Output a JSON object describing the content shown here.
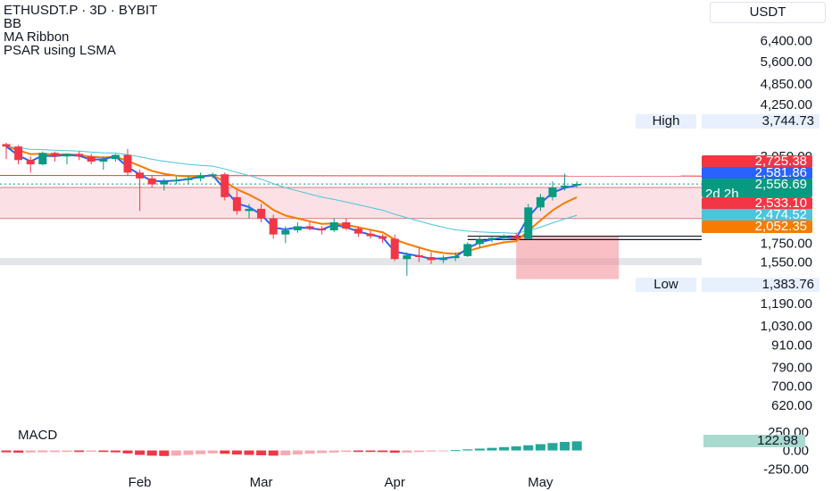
{
  "legend": {
    "title": "ETHUSDT.P · 3D · BYBIT",
    "indicators": [
      "BB",
      "MA Ribbon",
      "PSAR using LSMA"
    ]
  },
  "macd_label": "MACD",
  "price_axis": {
    "unit": "USDT",
    "ticks": [
      "6,400.00",
      "5,600.00",
      "4,850.00",
      "4,250.00",
      "3,050.00",
      "1,750.00",
      "1,550.00",
      "1,190.00",
      "1,030.00",
      "910.00",
      "790.00",
      "700.00",
      "620.00"
    ]
  },
  "macd_axis": {
    "ticks": [
      "250.00",
      "0.00",
      "-250.00"
    ]
  },
  "time_axis": {
    "labels": [
      "Feb",
      "Mar",
      "Apr",
      "May"
    ]
  },
  "high": {
    "label": "High",
    "value": "3,744.73"
  },
  "low": {
    "label": "Low",
    "value": "1,383.76"
  },
  "price_tags": [
    {
      "value": "2,725.38",
      "color": "#f23645"
    },
    {
      "value": "2,581.86",
      "color": "#2962ff"
    },
    {
      "value": "2,556.69",
      "color": "#089981",
      "extra": "2d 2h"
    },
    {
      "value": "2,533.10",
      "color": "#f23645"
    },
    {
      "value": "2,474.52",
      "color": "#4dc4d9"
    },
    {
      "value": "2,052.35",
      "color": "#f57c00"
    }
  ],
  "macd_value": "122.98",
  "colors": {
    "up": "#089981",
    "down": "#f23645",
    "ribbon_fast": "#2962ff",
    "ribbon_slow": "#f57c00",
    "bb_mid": "#4dc4d9",
    "zone": "#f8c9cf"
  },
  "chart_data": {
    "type": "candlestick",
    "symbol": "ETHUSDT.P",
    "timeframe": "3D",
    "exchange": "BYBIT",
    "y_scale": "log",
    "x_labels": [
      "Feb",
      "Mar",
      "Apr",
      "May"
    ],
    "ohlc": [
      [
        3300,
        3330,
        3000,
        3250
      ],
      [
        3250,
        3280,
        2900,
        2980
      ],
      [
        2980,
        3050,
        2750,
        2900
      ],
      [
        2900,
        3150,
        2880,
        3120
      ],
      [
        3120,
        3150,
        2950,
        3050
      ],
      [
        3050,
        3100,
        2900,
        3100
      ],
      [
        3100,
        3150,
        2980,
        3050
      ],
      [
        3050,
        3100,
        2900,
        2950
      ],
      [
        2950,
        3050,
        2800,
        3000
      ],
      [
        3000,
        3100,
        2950,
        3080
      ],
      [
        3080,
        3200,
        2700,
        2750
      ],
      [
        2750,
        2800,
        2150,
        2650
      ],
      [
        2650,
        2700,
        2500,
        2550
      ],
      [
        2550,
        2650,
        2450,
        2600
      ],
      [
        2600,
        2680,
        2550,
        2620
      ],
      [
        2620,
        2700,
        2550,
        2650
      ],
      [
        2650,
        2750,
        2600,
        2700
      ],
      [
        2700,
        2750,
        2650,
        2720
      ],
      [
        2720,
        2750,
        2300,
        2350
      ],
      [
        2350,
        2450,
        2100,
        2150
      ],
      [
        2150,
        2250,
        2050,
        2180
      ],
      [
        2180,
        2250,
        2000,
        2050
      ],
      [
        2050,
        2100,
        1800,
        1850
      ],
      [
        1850,
        1950,
        1750,
        1900
      ],
      [
        1900,
        2000,
        1870,
        1950
      ],
      [
        1950,
        2000,
        1900,
        1920
      ],
      [
        1920,
        1950,
        1850,
        1900
      ],
      [
        1900,
        2050,
        1880,
        2000
      ],
      [
        2000,
        2050,
        1900,
        1920
      ],
      [
        1920,
        1950,
        1820,
        1860
      ],
      [
        1860,
        1900,
        1800,
        1830
      ],
      [
        1830,
        1850,
        1750,
        1800
      ],
      [
        1800,
        1850,
        1560,
        1580
      ],
      [
        1580,
        1650,
        1420,
        1620
      ],
      [
        1620,
        1700,
        1550,
        1600
      ],
      [
        1600,
        1650,
        1530,
        1570
      ],
      [
        1570,
        1620,
        1540,
        1590
      ],
      [
        1590,
        1650,
        1560,
        1610
      ],
      [
        1610,
        1760,
        1600,
        1740
      ],
      [
        1740,
        1820,
        1700,
        1790
      ],
      [
        1790,
        1830,
        1760,
        1810
      ],
      [
        1810,
        1850,
        1780,
        1830
      ],
      [
        1830,
        1870,
        1790,
        1800
      ],
      [
        1800,
        2250,
        1790,
        2200
      ],
      [
        2200,
        2400,
        2150,
        2350
      ],
      [
        2350,
        2600,
        2300,
        2500
      ],
      [
        2500,
        2730,
        2450,
        2530
      ],
      [
        2530,
        2600,
        2500,
        2557
      ]
    ],
    "high": 3744.73,
    "low": 1383.76,
    "ylim": [
      565,
      7000
    ],
    "macd_ylim": [
      -330,
      320
    ],
    "macd_histogram": [
      -25,
      -30,
      -28,
      -25,
      -22,
      -20,
      -20,
      -18,
      -20,
      -25,
      -40,
      -60,
      -70,
      -75,
      -70,
      -60,
      -50,
      -40,
      -45,
      -55,
      -60,
      -65,
      -70,
      -65,
      -55,
      -45,
      -35,
      -28,
      -20,
      -20,
      -20,
      -22,
      -30,
      -28,
      -22,
      -15,
      -8,
      5,
      15,
      25,
      35,
      45,
      55,
      70,
      85,
      100,
      115,
      122.98
    ]
  }
}
